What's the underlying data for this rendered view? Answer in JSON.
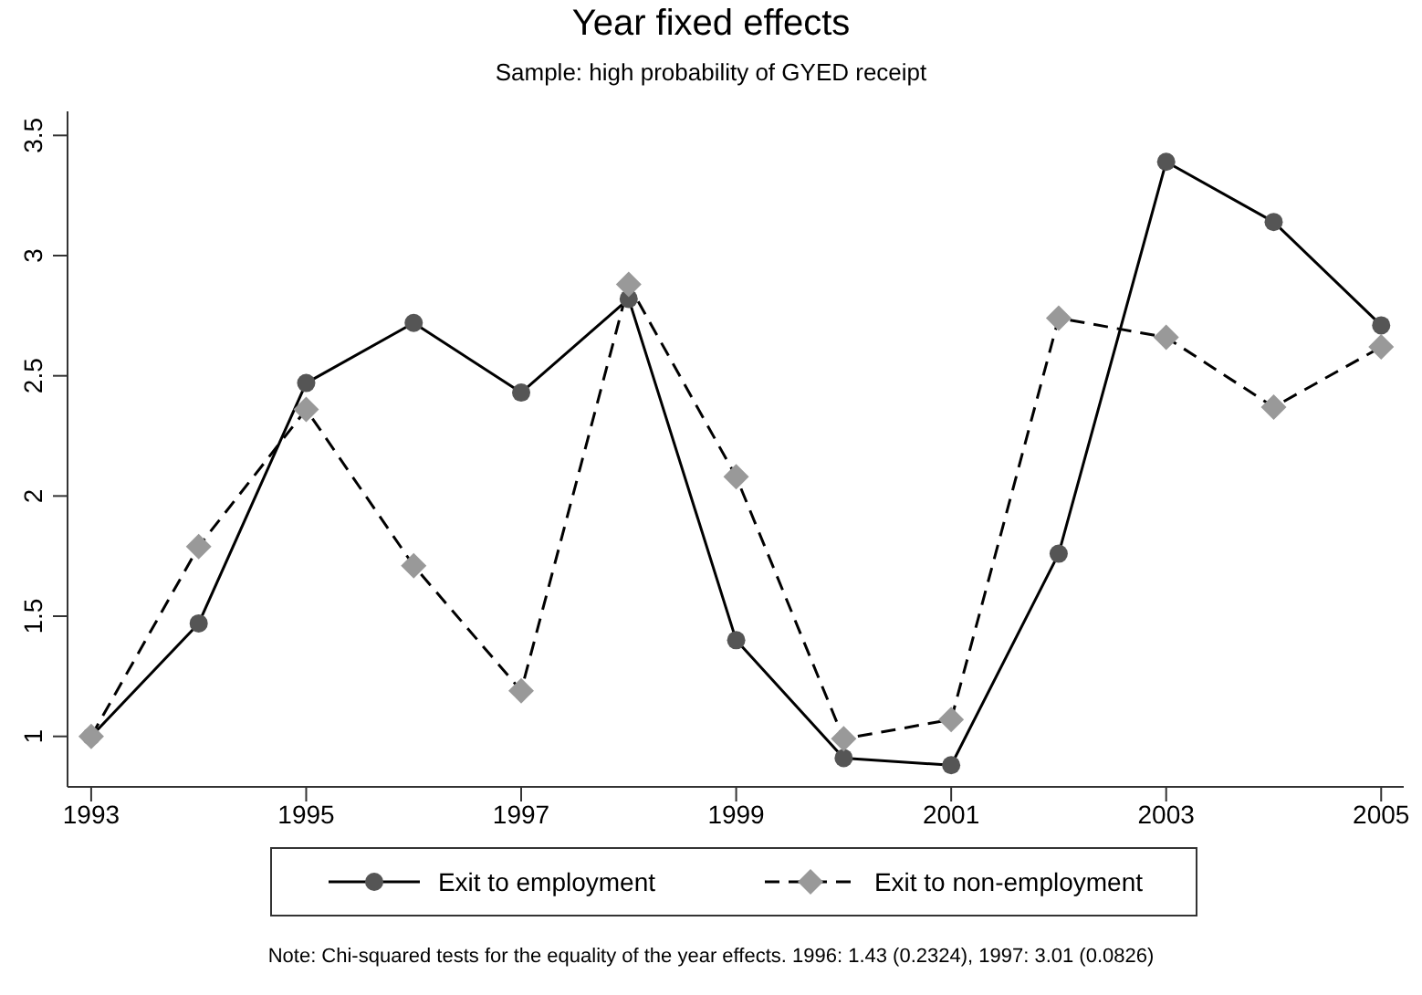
{
  "chart_data": {
    "type": "line",
    "title": "Year fixed effects",
    "subtitle": "Sample: high probability of GYED receipt",
    "x": [
      1993,
      1994,
      1995,
      1996,
      1997,
      1998,
      1999,
      2000,
      2001,
      2002,
      2003,
      2004,
      2005
    ],
    "series": [
      {
        "name": "Exit to employment",
        "color": "#555555",
        "marker": "circle",
        "line_style": "solid",
        "values": [
          1.0,
          1.47,
          2.47,
          2.72,
          2.43,
          2.82,
          1.4,
          0.91,
          0.88,
          1.76,
          3.39,
          3.14,
          2.71
        ]
      },
      {
        "name": "Exit to non-employment",
        "color": "#999999",
        "marker": "diamond",
        "line_style": "dashed",
        "values": [
          1.0,
          1.79,
          2.36,
          1.71,
          1.19,
          2.88,
          2.08,
          0.99,
          1.07,
          2.74,
          2.66,
          2.37,
          2.62
        ]
      }
    ],
    "xlim": [
      1992.78,
      2005.21
    ],
    "xticks": [
      1993,
      1995,
      1997,
      1999,
      2001,
      2003,
      2005
    ],
    "ylim": [
      0.79,
      3.6
    ],
    "yticks": [
      1,
      1.5,
      2,
      2.5,
      3,
      3.5
    ],
    "grid": false,
    "legend": "bottom",
    "annotations": [
      "Note: Chi-squared tests for the equality of the year effects. 1996: 1.43 (0.2324), 1997: 3.01 (0.0826)"
    ]
  }
}
